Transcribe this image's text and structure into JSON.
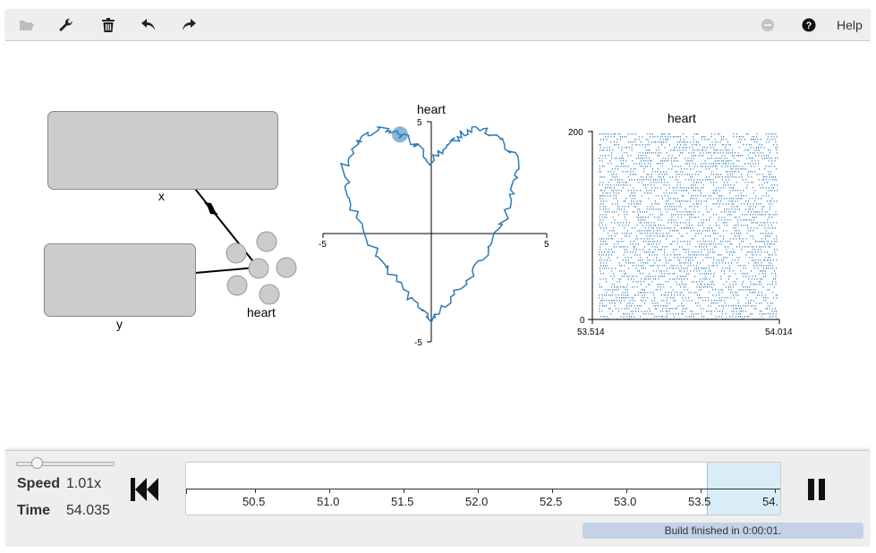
{
  "toolbar": {
    "items": [
      {
        "icon": "folder-open-icon"
      },
      {
        "icon": "wrench-icon"
      },
      {
        "icon": "trash-icon"
      },
      {
        "icon": "undo-icon"
      },
      {
        "icon": "redo-icon"
      },
      {
        "icon": "minus-circle-icon"
      },
      {
        "icon": "question-circle-icon"
      }
    ],
    "help_label": "Help"
  },
  "network": {
    "nodes": [
      {
        "label": "x",
        "type": "node"
      },
      {
        "label": "y",
        "type": "node"
      },
      {
        "label": "heart",
        "type": "ensemble"
      }
    ]
  },
  "plots": {
    "xy": {
      "title": "heart",
      "x_ticks": [
        "-5",
        "5"
      ],
      "y_ticks": [
        "5",
        "-5"
      ]
    },
    "raster": {
      "title": "heart",
      "y_ticks": [
        "200",
        "0"
      ],
      "x_ticks": [
        "53.514",
        "54.014"
      ]
    }
  },
  "chart_data": [
    {
      "type": "line",
      "title": "heart",
      "xlim": [
        -5,
        5
      ],
      "ylim": [
        -5,
        5
      ],
      "description": "XY value plot of ensemble decoded (x, y) tracing a heart curve",
      "series": [
        {
          "points": [
            [
              0,
              3.1
            ],
            [
              0.6,
              4.0
            ],
            [
              1.4,
              4.5
            ],
            [
              2.3,
              4.8
            ],
            [
              3.2,
              4.2
            ],
            [
              3.9,
              3.1
            ],
            [
              3.6,
              1.4
            ],
            [
              2.8,
              -0.3
            ],
            [
              1.8,
              -1.8
            ],
            [
              0.8,
              -3.2
            ],
            [
              0,
              -4.0
            ],
            [
              -0.8,
              -3.2
            ],
            [
              -1.8,
              -1.8
            ],
            [
              -2.8,
              -0.3
            ],
            [
              -3.6,
              1.4
            ],
            [
              -3.9,
              3.1
            ],
            [
              -3.2,
              4.2
            ],
            [
              -2.3,
              4.8
            ],
            [
              -1.4,
              4.5
            ],
            [
              -0.6,
              4.0
            ],
            [
              0,
              3.1
            ]
          ]
        }
      ],
      "current_point": [
        -1.4,
        4.5
      ]
    },
    {
      "type": "scatter",
      "title": "heart",
      "description": "Spike raster of ensemble neurons",
      "xlim": [
        53.514,
        54.014
      ],
      "ylim": [
        0,
        200
      ]
    }
  ],
  "controls": {
    "speed_label": "Speed",
    "speed_value": "1.01x",
    "speed_fraction": 0.2,
    "time_label": "Time",
    "time_value": "54.035"
  },
  "timeline": {
    "ticks": [
      "50.5",
      "51.0",
      "51.5",
      "52.0",
      "52.5",
      "53.0",
      "53.5",
      "54."
    ]
  },
  "status": "Build finished in 0:00:01.",
  "colors": {
    "accent": "#2c7bb6",
    "selection": "#d9edf7",
    "status_bg": "#c3d2e6"
  }
}
